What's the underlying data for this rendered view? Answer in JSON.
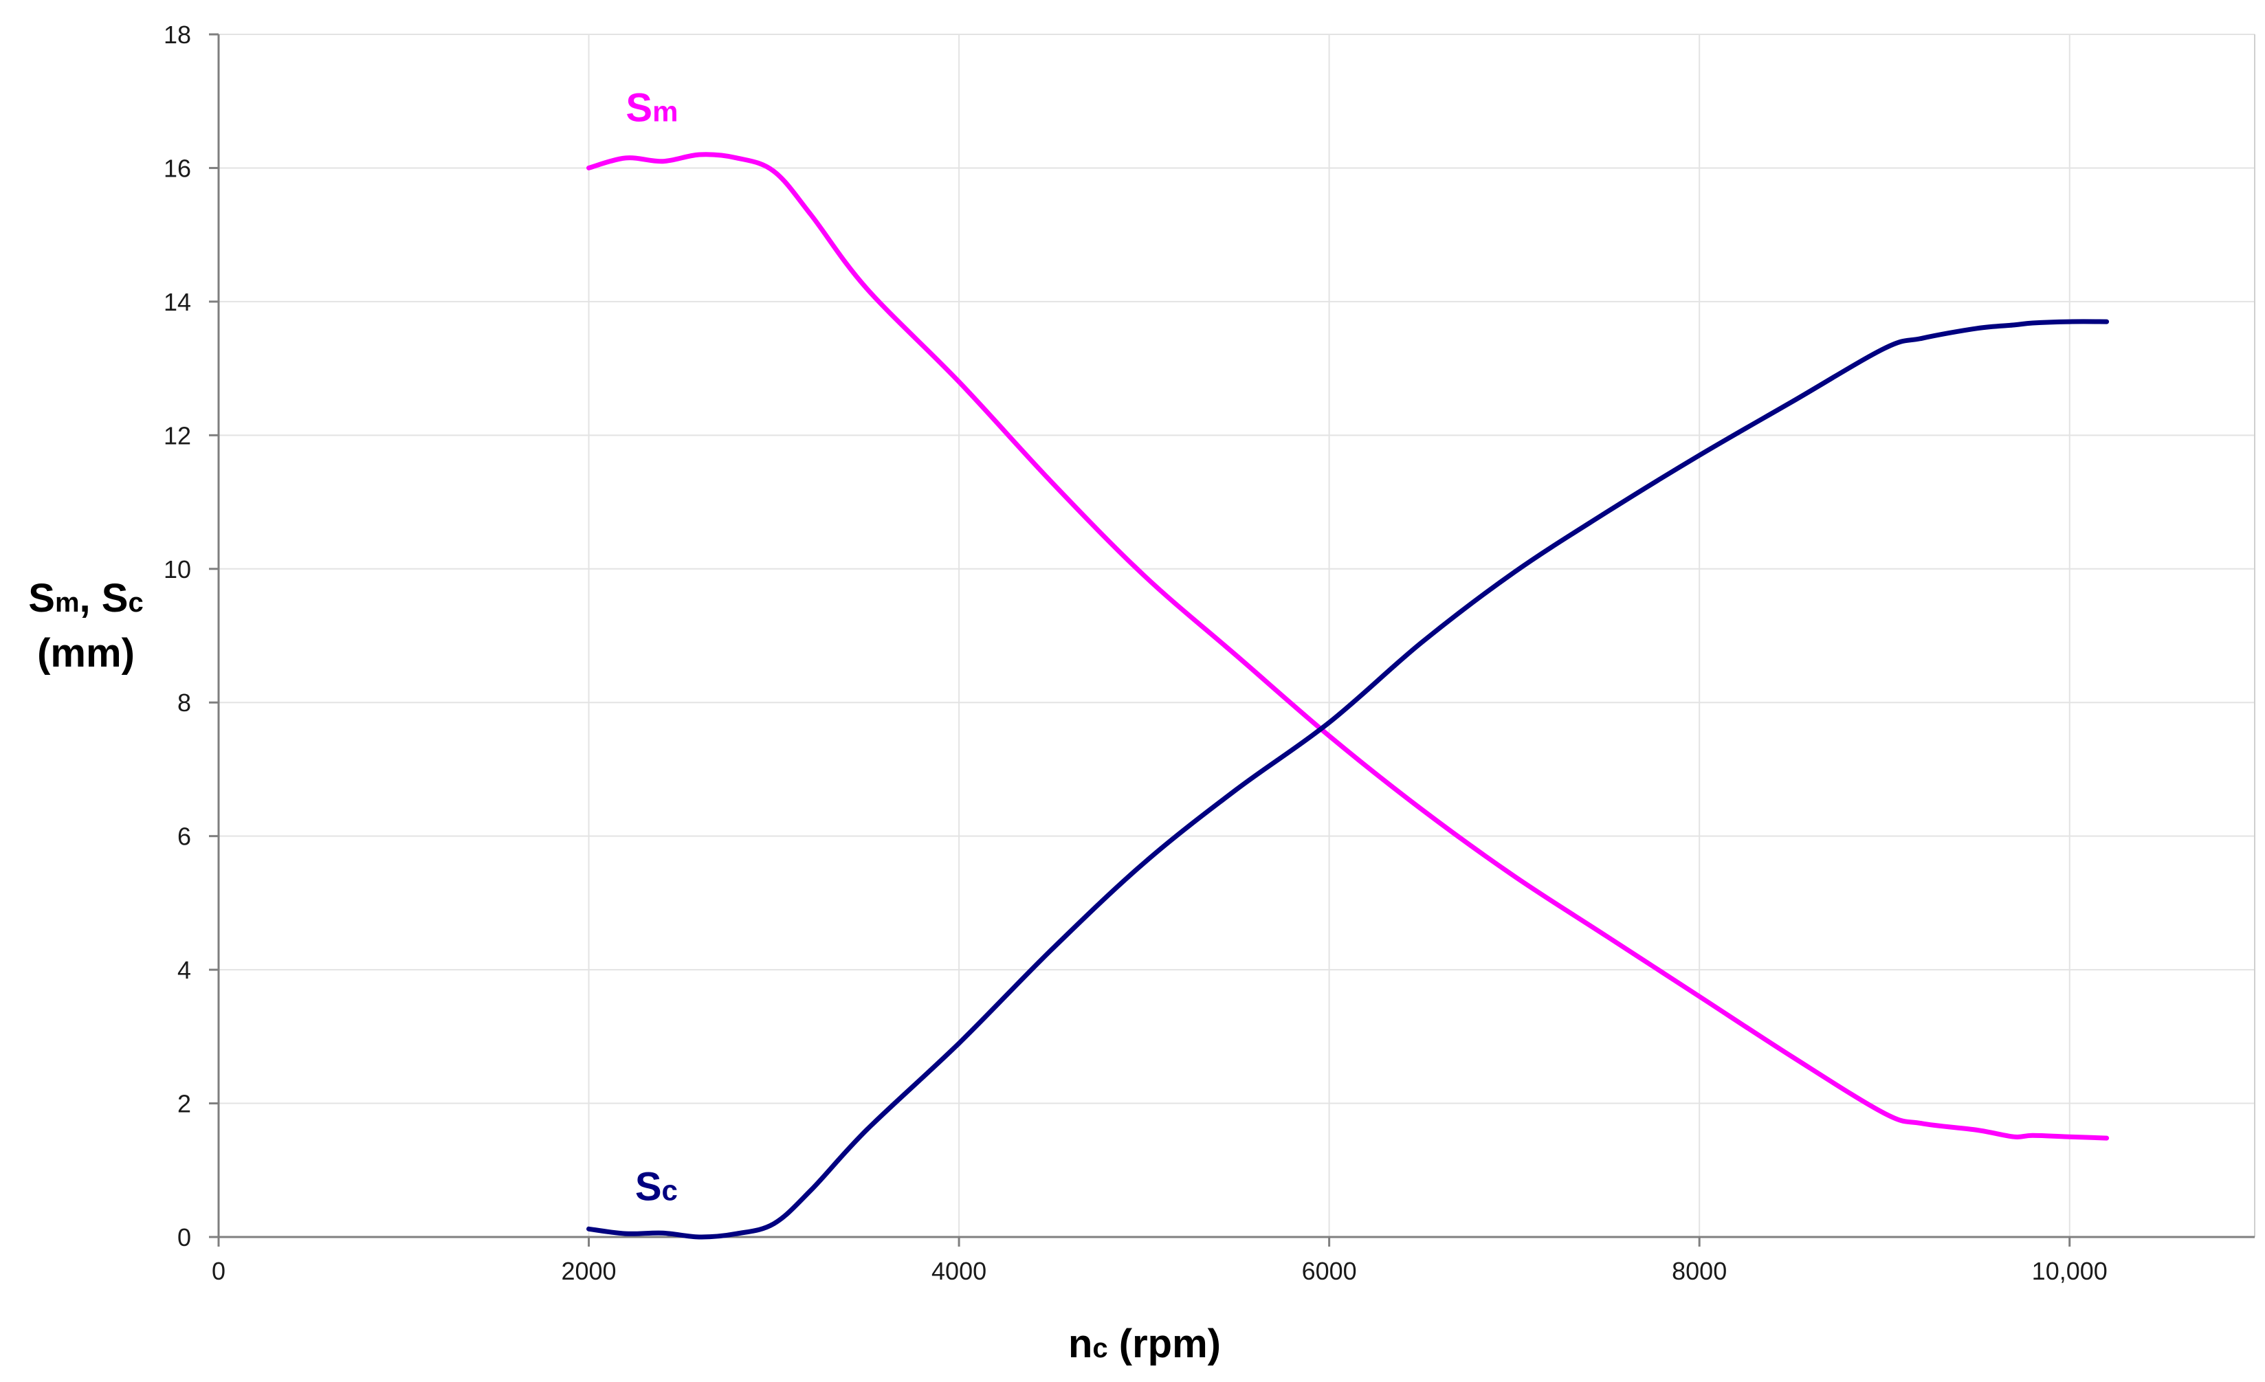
{
  "chart_data": {
    "type": "line",
    "xlabel": {
      "main": "n",
      "sub": "c",
      "rest": " (rpm)"
    },
    "ylabel": {
      "line1": [
        {
          "main": "S",
          "sub": "m"
        },
        {
          "main": ", S",
          "sub": "c"
        }
      ],
      "line2": "(mm)"
    },
    "xlim": [
      0,
      11000
    ],
    "ylim": [
      0,
      18
    ],
    "xticks": [
      0,
      2000,
      4000,
      6000,
      8000,
      10000
    ],
    "xtick_labels": [
      "0",
      "2000",
      "4000",
      "6000",
      "8000",
      "10,000"
    ],
    "yticks": [
      0,
      2,
      4,
      6,
      8,
      10,
      12,
      14,
      16,
      18
    ],
    "ytick_labels": [
      "0",
      "2",
      "4",
      "6",
      "8",
      "10",
      "12",
      "14",
      "16",
      "18"
    ],
    "grid": true,
    "legend": "none",
    "series": [
      {
        "name": {
          "main": "S",
          "sub": "m"
        },
        "color": "#ff00ff",
        "label_at": {
          "x": 2200,
          "y": 16.7
        },
        "x": [
          2000,
          2200,
          2400,
          2600,
          2800,
          3000,
          3200,
          3500,
          4000,
          4500,
          5000,
          5500,
          6000,
          6500,
          7000,
          7500,
          8000,
          8500,
          9000,
          9200,
          9500,
          9700,
          9800,
          10000,
          10200
        ],
        "y": [
          16.0,
          16.15,
          16.1,
          16.2,
          16.15,
          15.95,
          15.3,
          14.2,
          12.8,
          11.3,
          9.9,
          8.7,
          7.5,
          6.4,
          5.4,
          4.5,
          3.6,
          2.7,
          1.85,
          1.7,
          1.6,
          1.5,
          1.52,
          1.5,
          1.48
        ]
      },
      {
        "name": {
          "main": "S",
          "sub": "c"
        },
        "color": "#000080",
        "label_at": {
          "x": 2250,
          "y": 0.55
        },
        "x": [
          2000,
          2200,
          2400,
          2600,
          2800,
          3000,
          3200,
          3500,
          4000,
          4500,
          5000,
          5500,
          6000,
          6500,
          7000,
          7500,
          8000,
          8500,
          9000,
          9200,
          9500,
          9700,
          9800,
          10000,
          10200
        ],
        "y": [
          0.12,
          0.05,
          0.06,
          0.0,
          0.05,
          0.2,
          0.7,
          1.6,
          2.9,
          4.3,
          5.6,
          6.7,
          7.7,
          8.9,
          9.95,
          10.85,
          11.7,
          12.5,
          13.3,
          13.45,
          13.6,
          13.65,
          13.68,
          13.7,
          13.7
        ]
      }
    ]
  }
}
